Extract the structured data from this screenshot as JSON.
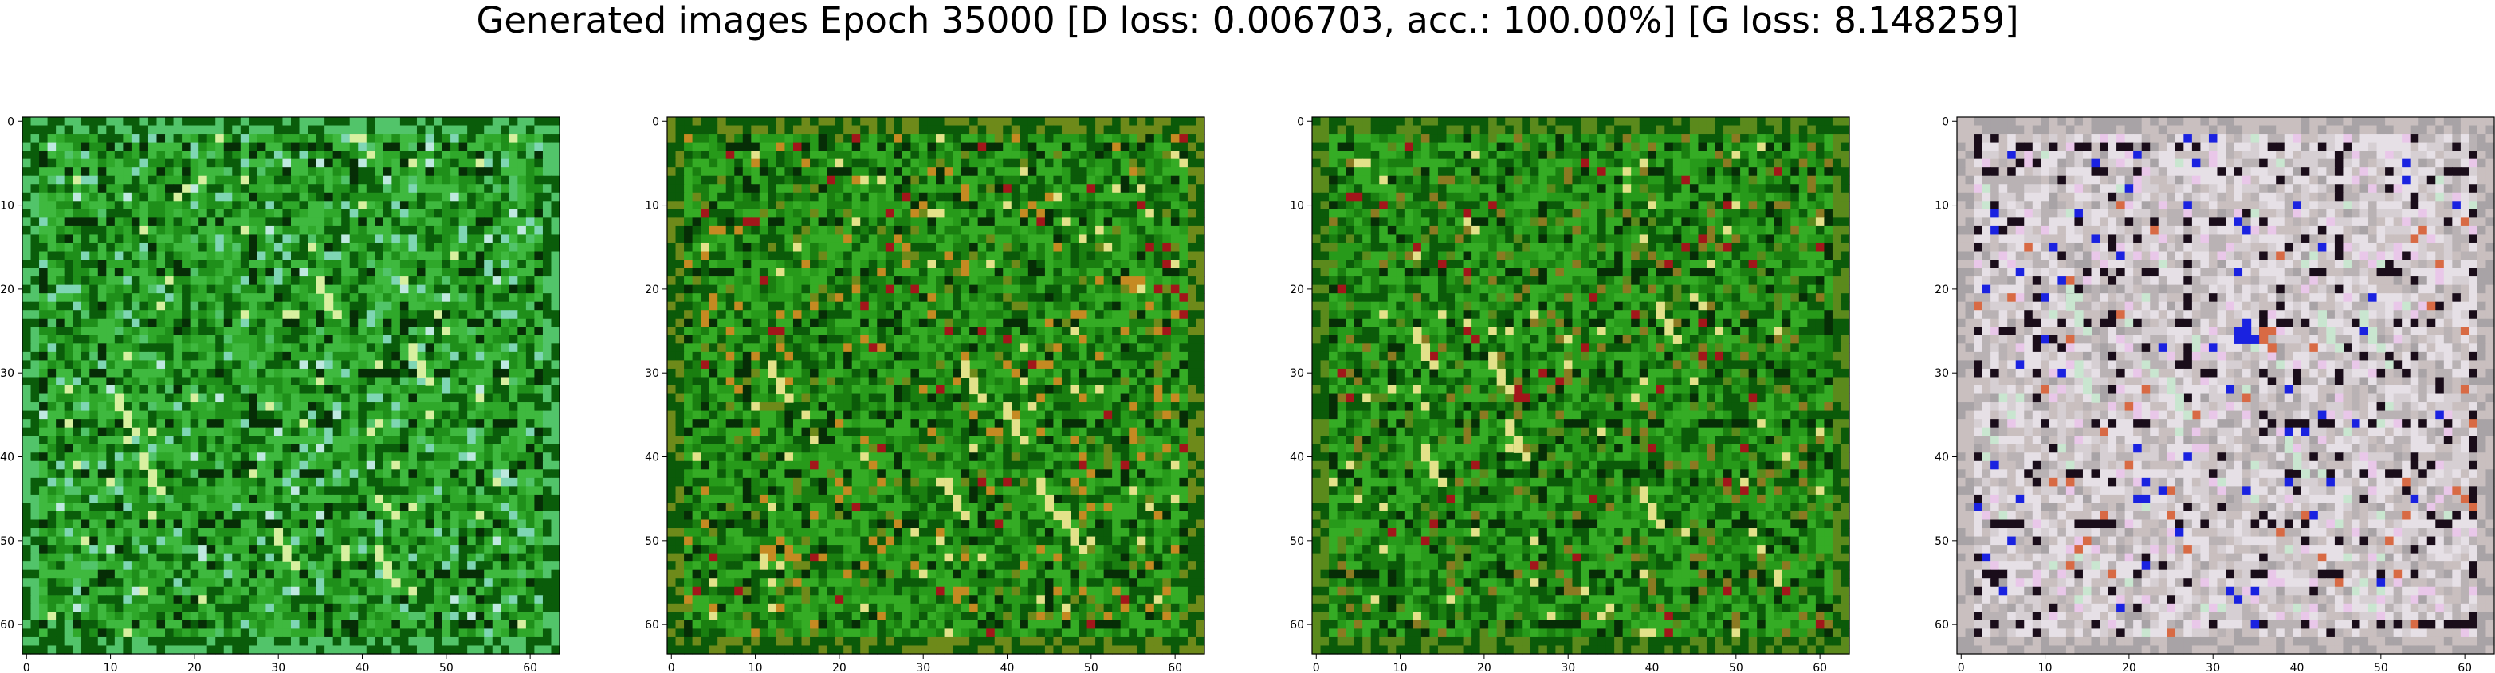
{
  "title": "Generated images Epoch 35000 [D loss: 0.006703, acc.: 100.00%] [G loss: 8.148259]",
  "chart_data": [
    {
      "type": "heatmap",
      "tone": "green-teal",
      "palette": [
        "#0a5c0a",
        "#1f8f1a",
        "#2fa82a",
        "#3fb93f",
        "#52c46a",
        "#7fd6b4",
        "#062d06",
        "#d8f0a0",
        "#bfe9e0"
      ],
      "xlim": [
        0,
        63
      ],
      "ylim": [
        63,
        0
      ],
      "xticks": [
        "0",
        "10",
        "20",
        "30",
        "40",
        "50",
        "60"
      ],
      "yticks": [
        "0",
        "10",
        "20",
        "30",
        "40",
        "50",
        "60"
      ]
    },
    {
      "type": "heatmap",
      "tone": "green-orange",
      "palette": [
        "#0b5a09",
        "#1a7f10",
        "#279a1a",
        "#35ac25",
        "#6e8a1a",
        "#c58a22",
        "#062d06",
        "#e3e28a",
        "#a2161a"
      ],
      "xlim": [
        0,
        63
      ],
      "ylim": [
        63,
        0
      ],
      "xticks": [
        "0",
        "10",
        "20",
        "30",
        "40",
        "50",
        "60"
      ],
      "yticks": [
        "0",
        "10",
        "20",
        "30",
        "40",
        "50",
        "60"
      ]
    },
    {
      "type": "heatmap",
      "tone": "green",
      "palette": [
        "#0b5a09",
        "#1a7f10",
        "#279a1a",
        "#35ac25",
        "#5b8a1c",
        "#8b7a22",
        "#062d06",
        "#e3e28a",
        "#a2161a"
      ],
      "xlim": [
        0,
        63
      ],
      "ylim": [
        63,
        0
      ],
      "xticks": [
        "0",
        "10",
        "20",
        "30",
        "40",
        "50",
        "60"
      ],
      "yticks": [
        "0",
        "10",
        "20",
        "30",
        "40",
        "50",
        "60"
      ]
    },
    {
      "type": "heatmap",
      "tone": "grey-pastel",
      "palette": [
        "#c9bfbf",
        "#d6cfd3",
        "#b9b2b4",
        "#e6e0e6",
        "#a8a3a6",
        "#e9c7e9",
        "#1a0d1a",
        "#c9e6d0",
        "#1a22e0",
        "#d86a44"
      ],
      "xlim": [
        0,
        63
      ],
      "ylim": [
        63,
        0
      ],
      "xticks": [
        "0",
        "10",
        "20",
        "30",
        "40",
        "50",
        "60"
      ],
      "yticks": [
        "0",
        "10",
        "20",
        "30",
        "40",
        "50",
        "60"
      ]
    }
  ]
}
